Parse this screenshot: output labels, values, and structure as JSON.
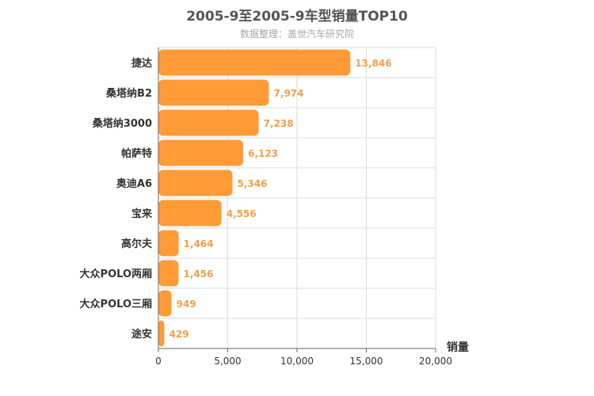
{
  "chart_data": {
    "type": "bar",
    "orientation": "horizontal",
    "title": "2005-9至2005-9车型销量TOP10",
    "subtitle": "数据整理：盖世汽车研究院",
    "xlabel": "销量",
    "ylabel": "",
    "categories": [
      "捷达",
      "桑塔纳B2",
      "桑塔纳3000",
      "帕萨特",
      "奥迪A6",
      "宝来",
      "高尔夫",
      "大众POLO两厢",
      "大众POLO三厢",
      "途安"
    ],
    "values": [
      13846,
      7974,
      7238,
      6123,
      5346,
      4556,
      1464,
      1456,
      949,
      429
    ],
    "value_labels": [
      "13,846",
      "7,974",
      "7,238",
      "6,123",
      "5,346",
      "4,556",
      "1,464",
      "1,456",
      "949",
      "429"
    ],
    "xlim": [
      0,
      20000
    ],
    "x_ticks": [
      0,
      5000,
      10000,
      15000,
      20000
    ],
    "x_tick_labels": [
      "0",
      "5,000",
      "10,000",
      "15,000",
      "20,000"
    ],
    "grid": true,
    "colors": {
      "bar": "#ff9b37",
      "value_label": "#f0a04a",
      "grid": "#dddddd",
      "axis": "#666666"
    }
  }
}
